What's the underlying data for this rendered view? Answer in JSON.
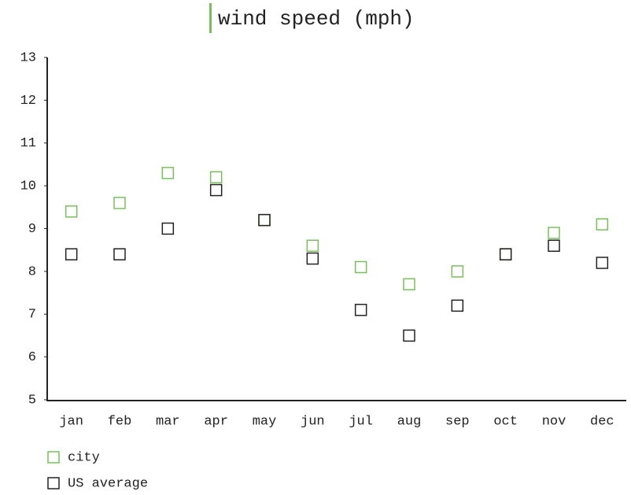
{
  "chart_data": {
    "type": "scatter",
    "title": "wind speed (mph)",
    "categories": [
      "jan",
      "feb",
      "mar",
      "apr",
      "may",
      "jun",
      "jul",
      "aug",
      "sep",
      "oct",
      "nov",
      "dec"
    ],
    "series": [
      {
        "name": "city",
        "color": "#78c05a",
        "values": [
          9.4,
          9.6,
          10.3,
          10.2,
          9.2,
          8.6,
          8.1,
          7.7,
          8.0,
          8.4,
          8.9,
          9.1
        ]
      },
      {
        "name": "US average",
        "color": "#222222",
        "values": [
          8.4,
          8.4,
          9.0,
          9.9,
          9.2,
          8.3,
          7.1,
          6.5,
          7.2,
          8.4,
          8.6,
          8.2
        ]
      }
    ],
    "ylim": [
      5,
      13
    ],
    "yticks": [
      5,
      6,
      7,
      8,
      9,
      10,
      11,
      12,
      13
    ],
    "grid": false
  }
}
